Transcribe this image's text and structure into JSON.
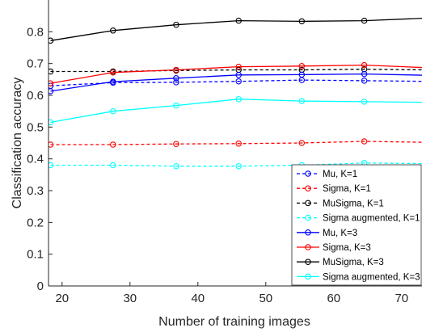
{
  "chart_data": {
    "type": "line",
    "title": "",
    "xlabel": "Number of training images",
    "ylabel": "Classification accuracy",
    "xlim": [
      18,
      73
    ],
    "ylim": [
      0,
      0.9
    ],
    "xticks": [
      20,
      30,
      40,
      50,
      60,
      70
    ],
    "yticks": [
      0,
      0.1,
      0.2,
      0.3,
      0.4,
      0.5,
      0.6,
      0.7,
      0.8
    ],
    "xtick_labels": [
      "20",
      "30",
      "40",
      "50",
      "60",
      "70"
    ],
    "ytick_labels": [
      "0",
      "0.1",
      "0.2",
      "0.3",
      "0.4",
      "0.5",
      "0.6",
      "0.7",
      "0.8"
    ],
    "grid": false,
    "legend_position": "bottom-right",
    "x": [
      18.3,
      27.5,
      36.8,
      46,
      55.3,
      64.5,
      73.7
    ],
    "series": [
      {
        "name": "Mu, K=1",
        "color": "#0000ff",
        "dashed": true,
        "values": [
          0.63,
          0.64,
          0.641,
          0.644,
          0.648,
          0.646,
          0.644
        ]
      },
      {
        "name": "Sigma, K=1",
        "color": "#ff0000",
        "dashed": true,
        "values": [
          0.445,
          0.445,
          0.447,
          0.448,
          0.45,
          0.455,
          0.452
        ]
      },
      {
        "name": "MuSigma, K=1",
        "color": "#000000",
        "dashed": true,
        "values": [
          0.675,
          0.675,
          0.678,
          0.68,
          0.68,
          0.682,
          0.68
        ]
      },
      {
        "name": "Sigma augmented, K=1",
        "color": "#00ffff",
        "dashed": true,
        "values": [
          0.38,
          0.38,
          0.377,
          0.377,
          0.38,
          0.387,
          0.385
        ]
      },
      {
        "name": "Mu, K=3",
        "color": "#0000ff",
        "dashed": false,
        "values": [
          0.613,
          0.643,
          0.654,
          0.664,
          0.665,
          0.667,
          0.663
        ]
      },
      {
        "name": "Sigma, K=3",
        "color": "#ff0000",
        "dashed": false,
        "values": [
          0.638,
          0.672,
          0.68,
          0.69,
          0.692,
          0.695,
          0.687
        ]
      },
      {
        "name": "MuSigma, K=3",
        "color": "#000000",
        "dashed": false,
        "values": [
          0.772,
          0.804,
          0.822,
          0.835,
          0.833,
          0.835,
          0.843
        ]
      },
      {
        "name": "Sigma augmented, K=3",
        "color": "#00ffff",
        "dashed": false,
        "values": [
          0.515,
          0.55,
          0.568,
          0.588,
          0.582,
          0.58,
          0.578
        ]
      }
    ]
  }
}
